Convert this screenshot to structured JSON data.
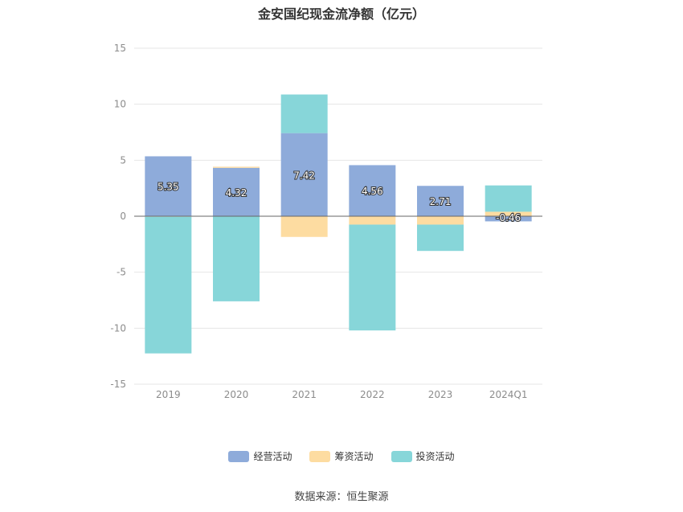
{
  "chart_data": {
    "type": "bar",
    "stacked": true,
    "title": "金安国纪现金流净额（亿元）",
    "categories": [
      "2019",
      "2020",
      "2021",
      "2022",
      "2023",
      "2024Q1"
    ],
    "ylim": [
      -15,
      15
    ],
    "yticks": [
      15,
      10,
      5,
      0,
      -5,
      -10,
      -15
    ],
    "grid": true,
    "legend_position": "bottom",
    "series": [
      {
        "name": "经营活动",
        "color": "#8eabda",
        "values": [
          5.35,
          4.32,
          7.42,
          4.56,
          2.71,
          -0.46
        ],
        "labels": [
          "5.35",
          "4.32",
          "7.42",
          "4.56",
          "2.71",
          "-0.46"
        ]
      },
      {
        "name": "筹资活动",
        "color": "#fddca1",
        "values": [
          -0.05,
          0.1,
          -1.85,
          -0.75,
          -0.75,
          0.4
        ]
      },
      {
        "name": "投资活动",
        "color": "#87d6d9",
        "values": [
          -12.2,
          -7.6,
          3.45,
          -9.45,
          -2.35,
          2.35
        ]
      }
    ]
  },
  "source": "数据来源：恒生聚源"
}
